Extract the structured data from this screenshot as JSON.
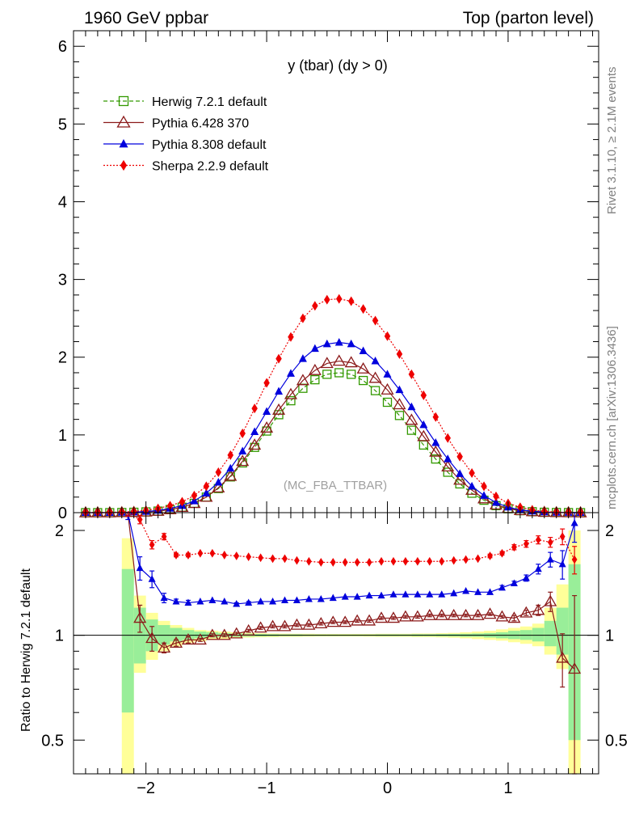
{
  "header": {
    "left_title": "1960 GeV ppbar",
    "right_title": "Top (parton level)"
  },
  "side": {
    "rivet": "Rivet 3.1.10, ≥ 2.1M events",
    "mcplots": "mcplots.cern.ch [arXiv:1306.3436]"
  },
  "colors": {
    "herwig": "#339900",
    "pythia6": "#8b1a1a",
    "pythia8": "#0000dd",
    "sherpa": "#ee0000",
    "band_inner": "#99ee99",
    "band_outer": "#ffff99"
  },
  "chart_data": [
    {
      "type": "line",
      "title": "y (tbar) (dy > 0)",
      "watermark": "(MC_FBA_TTBAR)",
      "xlim": [
        -2.6,
        1.75
      ],
      "ylim": [
        0,
        6.2
      ],
      "yticks": [
        0,
        1,
        2,
        3,
        4,
        5,
        6
      ],
      "ytick_labels": [
        "0",
        "1",
        "2",
        "3",
        "4",
        "5",
        "6"
      ],
      "legend_position": "top-left",
      "x": [
        -2.5,
        -2.4,
        -2.3,
        -2.2,
        -2.1,
        -2.0,
        -1.9,
        -1.8,
        -1.7,
        -1.6,
        -1.5,
        -1.4,
        -1.3,
        -1.2,
        -1.1,
        -1.0,
        -0.9,
        -0.8,
        -0.7,
        -0.6,
        -0.5,
        -0.4,
        -0.3,
        -0.2,
        -0.1,
        0.0,
        0.1,
        0.2,
        0.3,
        0.4,
        0.5,
        0.6,
        0.7,
        0.8,
        0.9,
        1.0,
        1.1,
        1.2,
        1.3,
        1.4,
        1.5,
        1.6
      ],
      "series": [
        {
          "name": "Herwig 7.2.1 default",
          "marker": "open-square",
          "dash": "dash",
          "color": "#339900",
          "values": [
            0,
            0,
            0,
            0.002,
            0.005,
            0.01,
            0.02,
            0.04,
            0.07,
            0.12,
            0.2,
            0.31,
            0.46,
            0.64,
            0.84,
            1.05,
            1.26,
            1.44,
            1.6,
            1.71,
            1.78,
            1.8,
            1.78,
            1.7,
            1.57,
            1.42,
            1.25,
            1.06,
            0.87,
            0.69,
            0.52,
            0.37,
            0.25,
            0.16,
            0.09,
            0.05,
            0.025,
            0.012,
            0.005,
            0.002,
            0.001,
            0
          ]
        },
        {
          "name": "Pythia 6.428 370",
          "marker": "open-triangle",
          "dash": "solid",
          "color": "#8b1a1a",
          "values": [
            0,
            0,
            0,
            0.002,
            0.005,
            0.01,
            0.02,
            0.04,
            0.07,
            0.12,
            0.2,
            0.32,
            0.47,
            0.66,
            0.87,
            1.09,
            1.32,
            1.52,
            1.7,
            1.83,
            1.92,
            1.95,
            1.93,
            1.85,
            1.73,
            1.58,
            1.39,
            1.19,
            0.98,
            0.78,
            0.59,
            0.42,
            0.29,
            0.18,
            0.1,
            0.055,
            0.028,
            0.014,
            0.006,
            0.002,
            0.001,
            0
          ]
        },
        {
          "name": "Pythia 8.308 default",
          "marker": "filled-triangle",
          "dash": "solid",
          "color": "#0000dd",
          "values": [
            0,
            0,
            0,
            0.003,
            0.007,
            0.014,
            0.028,
            0.055,
            0.09,
            0.15,
            0.25,
            0.39,
            0.57,
            0.79,
            1.04,
            1.3,
            1.56,
            1.79,
            1.98,
            2.11,
            2.17,
            2.19,
            2.17,
            2.08,
            1.95,
            1.78,
            1.58,
            1.36,
            1.13,
            0.9,
            0.69,
            0.5,
            0.34,
            0.22,
            0.13,
            0.07,
            0.035,
            0.018,
            0.008,
            0.003,
            0.001,
            0
          ]
        },
        {
          "name": "Sherpa 2.2.9 default",
          "marker": "filled-diamond",
          "dash": "dot",
          "color": "#ee0000",
          "values": [
            0.002,
            0.003,
            0.004,
            0.008,
            0.015,
            0.03,
            0.055,
            0.09,
            0.14,
            0.22,
            0.34,
            0.52,
            0.74,
            1.02,
            1.34,
            1.67,
            1.98,
            2.26,
            2.5,
            2.66,
            2.74,
            2.75,
            2.72,
            2.62,
            2.47,
            2.27,
            2.04,
            1.78,
            1.51,
            1.23,
            0.96,
            0.72,
            0.51,
            0.34,
            0.21,
            0.12,
            0.07,
            0.035,
            0.016,
            0.007,
            0.003,
            0.001
          ]
        }
      ]
    },
    {
      "type": "line",
      "ylabel": "Ratio to Herwig 7.2.1 default",
      "xlim": [
        -2.6,
        1.75
      ],
      "ylim": [
        0.4,
        2.25
      ],
      "xticks": [
        -2,
        -1,
        0,
        1
      ],
      "xtick_labels": [
        "−2",
        "−1",
        "0",
        "1"
      ],
      "yticks": [
        0.5,
        1,
        2
      ],
      "ytick_labels": [
        "0.5",
        "1",
        "2"
      ],
      "band": {
        "x_edges": [
          -2.2,
          -2.1,
          -2.0,
          -1.9,
          -1.8,
          -1.7,
          -1.6,
          -1.5,
          -1.4,
          -1.3,
          -1.2,
          -1.1,
          -1.0,
          -0.9,
          -0.8,
          -0.7,
          -0.6,
          -0.5,
          -0.4,
          -0.3,
          -0.2,
          -0.1,
          0.0,
          0.1,
          0.2,
          0.3,
          0.4,
          0.5,
          0.6,
          0.7,
          0.8,
          0.9,
          1.0,
          1.1,
          1.2,
          1.3,
          1.4,
          1.5,
          1.6
        ],
        "inner_low": [
          0.6,
          0.83,
          0.9,
          0.94,
          0.96,
          0.97,
          0.98,
          0.985,
          0.99,
          0.99,
          0.992,
          0.993,
          0.994,
          0.995,
          0.995,
          0.996,
          0.996,
          0.996,
          0.996,
          0.996,
          0.996,
          0.995,
          0.995,
          0.995,
          0.994,
          0.994,
          0.993,
          0.992,
          0.99,
          0.99,
          0.985,
          0.98,
          0.975,
          0.97,
          0.96,
          0.93,
          0.88,
          0.5
        ],
        "inner_high": [
          1.55,
          1.2,
          1.11,
          1.07,
          1.05,
          1.035,
          1.025,
          1.02,
          1.015,
          1.012,
          1.01,
          1.008,
          1.007,
          1.006,
          1.006,
          1.005,
          1.005,
          1.005,
          1.005,
          1.005,
          1.005,
          1.006,
          1.006,
          1.006,
          1.007,
          1.007,
          1.008,
          1.009,
          1.01,
          1.012,
          1.015,
          1.02,
          1.03,
          1.035,
          1.05,
          1.1,
          1.2,
          1.6
        ],
        "outer_low": [
          0.3,
          0.78,
          0.85,
          0.9,
          0.93,
          0.95,
          0.96,
          0.97,
          0.975,
          0.98,
          0.985,
          0.987,
          0.988,
          0.99,
          0.99,
          0.991,
          0.992,
          0.992,
          0.992,
          0.992,
          0.991,
          0.99,
          0.99,
          0.99,
          0.988,
          0.988,
          0.986,
          0.984,
          0.98,
          0.975,
          0.97,
          0.965,
          0.955,
          0.945,
          0.93,
          0.88,
          0.8,
          0.3
        ],
        "outer_high": [
          1.9,
          1.3,
          1.16,
          1.1,
          1.07,
          1.05,
          1.035,
          1.03,
          1.025,
          1.02,
          1.016,
          1.014,
          1.012,
          1.011,
          1.01,
          1.01,
          1.009,
          1.009,
          1.009,
          1.009,
          1.009,
          1.01,
          1.01,
          1.01,
          1.012,
          1.012,
          1.014,
          1.016,
          1.02,
          1.025,
          1.03,
          1.04,
          1.05,
          1.06,
          1.08,
          1.2,
          1.4,
          2.0
        ]
      },
      "x": [
        -2.15,
        -2.05,
        -1.95,
        -1.85,
        -1.75,
        -1.65,
        -1.55,
        -1.45,
        -1.35,
        -1.25,
        -1.15,
        -1.05,
        -0.95,
        -0.85,
        -0.75,
        -0.65,
        -0.55,
        -0.45,
        -0.35,
        -0.25,
        -0.15,
        -0.05,
        0.05,
        0.15,
        0.25,
        0.35,
        0.45,
        0.55,
        0.65,
        0.75,
        0.85,
        0.95,
        1.05,
        1.15,
        1.25,
        1.35,
        1.45,
        1.55
      ],
      "series": [
        {
          "name": "Pythia 6.428 370",
          "marker": "open-triangle",
          "color": "#8b1a1a",
          "values": [
            2.3,
            1.12,
            0.98,
            0.92,
            0.95,
            0.97,
            0.97,
            1.0,
            1.0,
            1.01,
            1.03,
            1.05,
            1.06,
            1.06,
            1.07,
            1.07,
            1.08,
            1.09,
            1.09,
            1.1,
            1.1,
            1.12,
            1.12,
            1.13,
            1.13,
            1.14,
            1.14,
            1.14,
            1.14,
            1.14,
            1.15,
            1.13,
            1.12,
            1.16,
            1.18,
            1.25,
            0.86,
            0.8
          ],
          "errors": [
            0.1,
            0.1,
            0.08,
            0.03,
            0.02,
            0.02,
            0.01,
            0.01,
            0.01,
            0.01,
            0.01,
            0.01,
            0.01,
            0.01,
            0.01,
            0.01,
            0.01,
            0.01,
            0.01,
            0.01,
            0.01,
            0.01,
            0.01,
            0.01,
            0.01,
            0.01,
            0.01,
            0.01,
            0.01,
            0.01,
            0.01,
            0.01,
            0.02,
            0.02,
            0.04,
            0.08,
            0.15,
            0.5
          ]
        },
        {
          "name": "Pythia 8.308 default",
          "marker": "filled-triangle",
          "color": "#0000dd",
          "values": [
            2.3,
            1.56,
            1.45,
            1.28,
            1.25,
            1.24,
            1.25,
            1.26,
            1.25,
            1.23,
            1.24,
            1.25,
            1.25,
            1.26,
            1.26,
            1.27,
            1.27,
            1.28,
            1.29,
            1.29,
            1.3,
            1.3,
            1.31,
            1.31,
            1.31,
            1.31,
            1.31,
            1.32,
            1.34,
            1.33,
            1.33,
            1.37,
            1.41,
            1.46,
            1.55,
            1.65,
            1.6,
            2.1
          ],
          "errors": [
            0.15,
            0.12,
            0.08,
            0.04,
            0.02,
            0.02,
            0.01,
            0.01,
            0.01,
            0.01,
            0.01,
            0.01,
            0.01,
            0.01,
            0.01,
            0.01,
            0.01,
            0.01,
            0.01,
            0.01,
            0.01,
            0.01,
            0.01,
            0.01,
            0.01,
            0.01,
            0.01,
            0.01,
            0.01,
            0.01,
            0.01,
            0.02,
            0.02,
            0.03,
            0.05,
            0.08,
            0.15,
            0.25
          ]
        },
        {
          "name": "Sherpa 2.2.9 default",
          "marker": "filled-diamond",
          "color": "#ee0000",
          "values": [
            2.3,
            2.15,
            1.82,
            1.92,
            1.7,
            1.7,
            1.72,
            1.72,
            1.7,
            1.69,
            1.68,
            1.67,
            1.66,
            1.66,
            1.64,
            1.63,
            1.62,
            1.62,
            1.62,
            1.62,
            1.62,
            1.63,
            1.63,
            1.63,
            1.63,
            1.63,
            1.63,
            1.64,
            1.65,
            1.66,
            1.69,
            1.72,
            1.79,
            1.83,
            1.88,
            1.85,
            1.92,
            1.65
          ],
          "errors": [
            0.1,
            0.06,
            0.05,
            0.04,
            0.02,
            0.02,
            0.01,
            0.01,
            0.01,
            0.01,
            0.01,
            0.01,
            0.01,
            0.01,
            0.01,
            0.01,
            0.01,
            0.01,
            0.01,
            0.01,
            0.01,
            0.01,
            0.01,
            0.01,
            0.01,
            0.01,
            0.01,
            0.01,
            0.01,
            0.01,
            0.02,
            0.02,
            0.03,
            0.04,
            0.05,
            0.06,
            0.1,
            0.15
          ]
        }
      ]
    }
  ]
}
